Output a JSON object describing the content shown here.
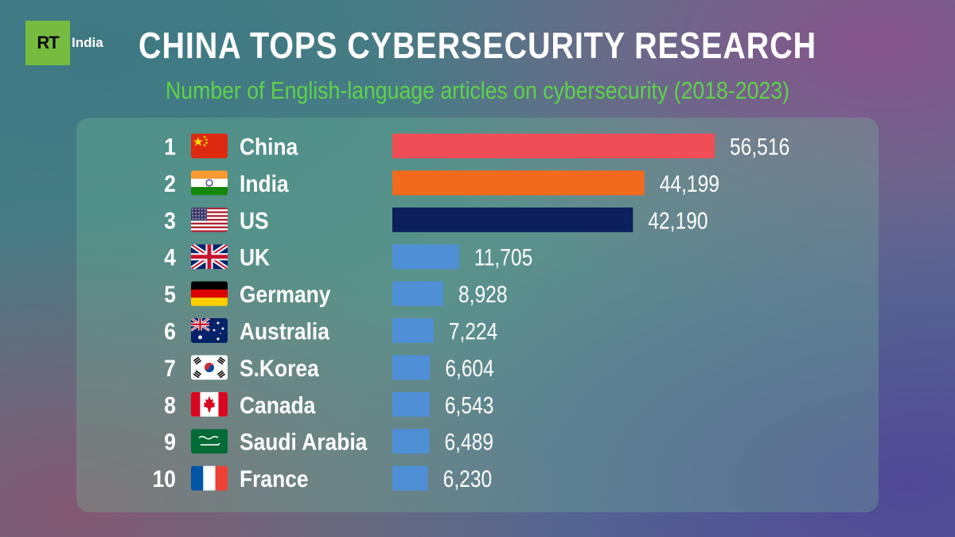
{
  "logo": {
    "mark": "RT",
    "sub": "India"
  },
  "chart_data": {
    "type": "bar",
    "orientation": "horizontal",
    "title": "CHINA TOPS CYBERSECURITY RESEARCH",
    "subtitle": "Number of English-language articles on cybersecurity (2018-2023)",
    "xlim": [
      0,
      56516
    ],
    "items": [
      {
        "rank": "1",
        "country": "China",
        "flag": "china-flag-icon",
        "value": 56516,
        "label": "56,516",
        "color": "#f04e56"
      },
      {
        "rank": "2",
        "country": "India",
        "flag": "india-flag-icon",
        "value": 44199,
        "label": "44,199",
        "color": "#f26b1d"
      },
      {
        "rank": "3",
        "country": "US",
        "flag": "us-flag-icon",
        "value": 42190,
        "label": "42,190",
        "color": "#0d1f5c"
      },
      {
        "rank": "4",
        "country": "UK",
        "flag": "uk-flag-icon",
        "value": 11705,
        "label": "11,705",
        "color": "#4f8fd6"
      },
      {
        "rank": "5",
        "country": "Germany",
        "flag": "germany-flag-icon",
        "value": 8928,
        "label": "8,928",
        "color": "#4f8fd6"
      },
      {
        "rank": "6",
        "country": "Australia",
        "flag": "australia-flag-icon",
        "value": 7224,
        "label": "7,224",
        "color": "#4f8fd6"
      },
      {
        "rank": "7",
        "country": "S.Korea",
        "flag": "south-korea-flag-icon",
        "value": 6604,
        "label": "6,604",
        "color": "#4f8fd6"
      },
      {
        "rank": "8",
        "country": "Canada",
        "flag": "canada-flag-icon",
        "value": 6543,
        "label": "6,543",
        "color": "#4f8fd6"
      },
      {
        "rank": "9",
        "country": "Saudi Arabia",
        "flag": "saudi-arabia-flag-icon",
        "value": 6489,
        "label": "6,489",
        "color": "#4f8fd6"
      },
      {
        "rank": "10",
        "country": "France",
        "flag": "france-flag-icon",
        "value": 6230,
        "label": "6,230",
        "color": "#4f8fd6"
      }
    ]
  }
}
